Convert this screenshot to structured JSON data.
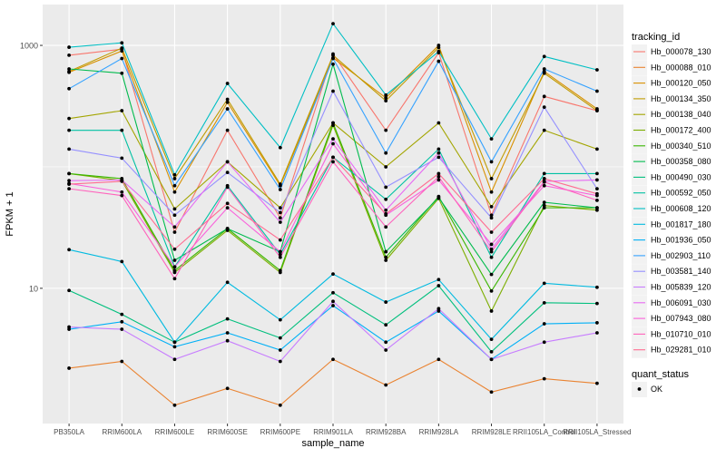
{
  "chart_data": {
    "type": "line",
    "x_label": "sample_name",
    "y_label": "FPKM + 1",
    "log_y": true,
    "grid": true,
    "legend_position": "right",
    "legend_title": "tracking_id",
    "point_color": "#000000",
    "point_legend": {
      "title": "quant_status",
      "levels": [
        "OK"
      ]
    },
    "categories": [
      "PB350LA",
      "RRIM600LA",
      "RRIM600LE",
      "RRIM600SE",
      "RRIM600PE",
      "RRIM901LA",
      "RRIM928BA",
      "RRIM928LA",
      "RRIM928LE",
      "RRII105LA_Control",
      "RRII105LA_Stressed"
    ],
    "ylim": [
      0.77,
      2170
    ],
    "yticks": [
      10,
      1000
    ],
    "series": [
      {
        "name": "Hb_000078_130",
        "color": "#F8766D",
        "values": [
          830,
          930,
          29,
          200,
          38,
          850,
          200,
          870,
          40,
          380,
          290
        ]
      },
      {
        "name": "Hb_000088_010",
        "color": "#EA8331",
        "values": [
          2.2,
          2.5,
          1.09,
          1.5,
          1.09,
          2.6,
          1.6,
          2.6,
          1.4,
          1.8,
          1.65
        ]
      },
      {
        "name": "Hb_000120_050",
        "color": "#D89000",
        "values": [
          600,
          900,
          62,
          340,
          70,
          790,
          370,
          1000,
          62,
          610,
          300
        ]
      },
      {
        "name": "Hb_000134_350",
        "color": "#C09B00",
        "values": [
          610,
          950,
          80,
          360,
          72,
          830,
          350,
          960,
          80,
          590,
          290
        ]
      },
      {
        "name": "Hb_000138_040",
        "color": "#A3A500",
        "values": [
          250,
          290,
          45,
          110,
          46,
          230,
          100,
          230,
          47,
          200,
          140
        ]
      },
      {
        "name": "Hb_000172_400",
        "color": "#7CAE00",
        "values": [
          88,
          77,
          13.5,
          30,
          13.5,
          220,
          17,
          55,
          6.5,
          48,
          44
        ]
      },
      {
        "name": "Hb_000340_510",
        "color": "#39B600",
        "values": [
          88,
          80,
          14,
          31,
          14,
          230,
          18,
          57,
          9.5,
          46,
          46
        ]
      },
      {
        "name": "Hb_000358_080",
        "color": "#00BB4E",
        "values": [
          640,
          590,
          17,
          31,
          20,
          700,
          20,
          56,
          13,
          51,
          46
        ]
      },
      {
        "name": "Hb_000490_030",
        "color": "#00BF7D",
        "values": [
          9.6,
          6.1,
          3.6,
          5.6,
          3.9,
          9.2,
          5.0,
          10.5,
          3.0,
          7.6,
          7.5
        ]
      },
      {
        "name": "Hb_000592_050",
        "color": "#00C1A3",
        "values": [
          200,
          200,
          15,
          70,
          19,
          120,
          54,
          140,
          18,
          88,
          88
        ]
      },
      {
        "name": "Hb_000608_120",
        "color": "#00BFC4",
        "values": [
          966,
          1050,
          86,
          486,
          144,
          1510,
          390,
          890,
          170,
          810,
          629
        ]
      },
      {
        "name": "Hb_001817_180",
        "color": "#00BAE0",
        "values": [
          20.8,
          16.6,
          3.6,
          11.2,
          5.5,
          13.1,
          7.7,
          11.8,
          3.8,
          11.0,
          10.2
        ]
      },
      {
        "name": "Hb_001936_050",
        "color": "#00B0F6",
        "values": [
          4.6,
          5.3,
          3.3,
          4.3,
          3.1,
          7.2,
          3.6,
          6.5,
          2.6,
          5.1,
          5.2
        ]
      },
      {
        "name": "Hb_002903_110",
        "color": "#35A2FF",
        "values": [
          440,
          780,
          70,
          300,
          65,
          780,
          130,
          740,
          110,
          640,
          420
        ]
      },
      {
        "name": "Hb_003581_140",
        "color": "#9590FF",
        "values": [
          140,
          118,
          40,
          90,
          42,
          420,
          68,
          120,
          38,
          310,
          66
        ]
      },
      {
        "name": "Hb_005839_120",
        "color": "#C77CFF",
        "values": [
          4.8,
          4.6,
          2.6,
          3.7,
          2.5,
          7.8,
          3.1,
          6.8,
          2.6,
          3.6,
          4.3
        ]
      },
      {
        "name": "Hb_006091_030",
        "color": "#E76BF3",
        "values": [
          77,
          78,
          32,
          110,
          35,
          170,
          44,
          130,
          21,
          76,
          78
        ]
      },
      {
        "name": "Hb_007943_080",
        "color": "#FA62DB",
        "values": [
          73,
          62,
          15,
          46,
          20,
          155,
          40,
          78,
          23,
          70,
          58
        ]
      },
      {
        "name": "Hb_010710_010",
        "color": "#FF62BC",
        "values": [
          66,
          58,
          12,
          68,
          18,
          110,
          32,
          83,
          20,
          75,
          53
        ]
      },
      {
        "name": "Hb_029281_010",
        "color": "#FF6C91",
        "values": [
          72,
          76,
          21,
          50,
          25,
          120,
          41,
          88,
          29,
          80,
          60
        ]
      }
    ]
  }
}
